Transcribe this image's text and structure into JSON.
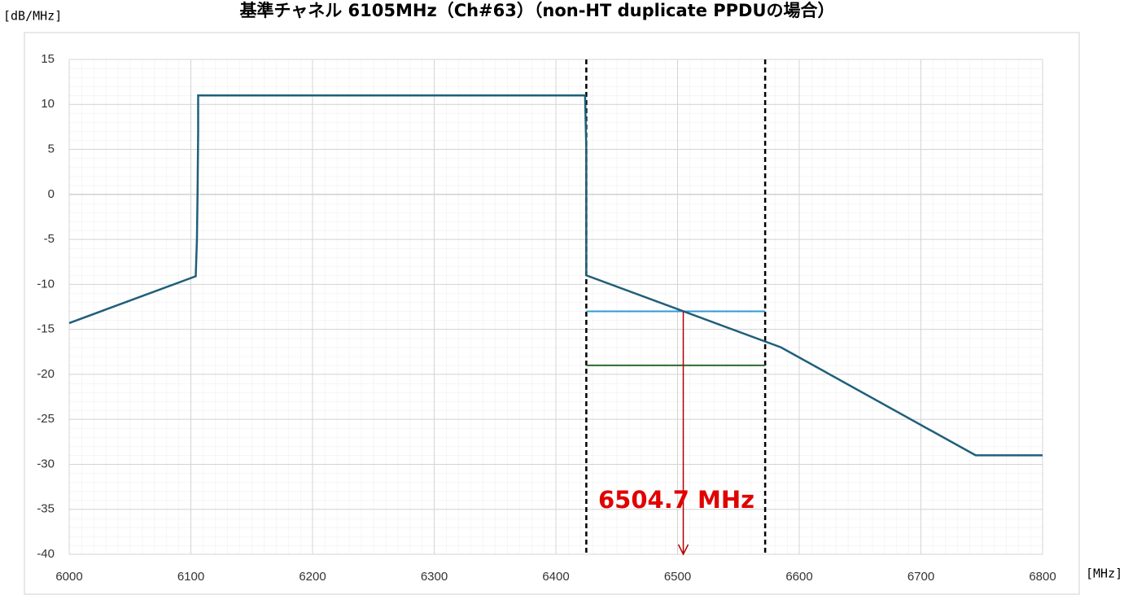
{
  "chart_data": {
    "type": "line",
    "title": "基準チャネル 6105MHz（Ch#63）（non-HT duplicate PPDUの場合）",
    "y_unit": "[dB/MHz]",
    "x_unit": "[MHz]",
    "xlim": [
      6000,
      6800
    ],
    "ylim": [
      -40,
      15
    ],
    "xticks": [
      6000,
      6100,
      6200,
      6300,
      6400,
      6500,
      6600,
      6700,
      6800
    ],
    "yticks": [
      -40,
      -35,
      -30,
      -25,
      -20,
      -15,
      -10,
      -5,
      0,
      5,
      10,
      15
    ],
    "grid": true,
    "series": [
      {
        "color": "#1f5f7a",
        "x": [
          6000,
          6104,
          6105,
          6105.5,
          6106,
          6106,
          6424,
          6425,
          6425,
          6585,
          6745,
          6800
        ],
        "values": [
          -14.3,
          -9.1,
          -5,
          0,
          7,
          11,
          11,
          5,
          -9,
          -17,
          -29,
          -29
        ]
      },
      {
        "color": "#2e9bd6",
        "x": [
          6425,
          6572
        ],
        "values": [
          -13,
          -13
        ]
      },
      {
        "color": "#2e6b2e",
        "x": [
          6425,
          6572
        ],
        "values": [
          -19,
          -19
        ]
      }
    ],
    "vlines": [
      6425,
      6572
    ],
    "annotation": {
      "text": "6504.7 MHz",
      "x": 6504.7,
      "y_start": -13,
      "y_end": -40,
      "color": "#e00000"
    }
  }
}
